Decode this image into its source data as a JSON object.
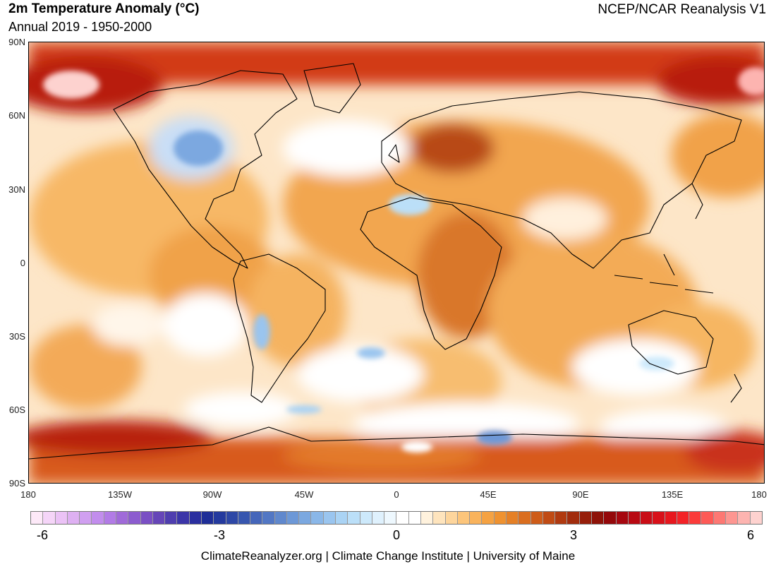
{
  "header": {
    "title": "2m Temperature Anomaly (°C)",
    "subtitle": "Annual 2019 - 1950-2000",
    "source": "NCEP/NCAR Reanalysis V1"
  },
  "map": {
    "lat_labels": [
      "90N",
      "60N",
      "30N",
      "0",
      "30S",
      "60S",
      "90S"
    ],
    "lon_labels": [
      "180",
      "135W",
      "90W",
      "45W",
      "0",
      "45E",
      "90E",
      "135E",
      "180"
    ]
  },
  "legend": {
    "tick_labels": [
      "-6",
      "-3",
      "0",
      "3",
      "6"
    ],
    "colors": [
      "#fde9f8",
      "#f5d5f8",
      "#ebc2f6",
      "#deb0f2",
      "#d09ff0",
      "#c28ded",
      "#b27be6",
      "#a06ad9",
      "#8c5ccf",
      "#7a4fc4",
      "#6646b8",
      "#4f3eaf",
      "#3b35a8",
      "#2a2f9f",
      "#1f2e97",
      "#243a9e",
      "#2d47a6",
      "#3756af",
      "#4566ba",
      "#5277c4",
      "#6088cd",
      "#6d98d7",
      "#7ba8e0",
      "#8ab7e8",
      "#9ac5ef",
      "#aad3f4",
      "#bbdff8",
      "#cde9fb",
      "#dff1fd",
      "#eef8fe",
      "#ffffff",
      "#ffffff",
      "#fff2dd",
      "#fee4bd",
      "#fdd59c",
      "#fcc57b",
      "#f9b35c",
      "#f5a242",
      "#ef9230",
      "#e58026",
      "#da6e1f",
      "#ce5c19",
      "#c04b14",
      "#b03a10",
      "#a12c0d",
      "#961e0a",
      "#8e1208",
      "#94080a",
      "#a6070f",
      "#b80912",
      "#c90c16",
      "#d8111a",
      "#e7171e",
      "#f32227",
      "#fb3b3a",
      "#fd5a56",
      "#fd7873",
      "#fd9691",
      "#fdb4b0",
      "#fed2cf"
    ],
    "color_scale": {
      "min": -6,
      "max": 6
    }
  },
  "footer": {
    "credit": "ClimateReanalyzer.org | Climate Change Institute | University of Maine"
  }
}
